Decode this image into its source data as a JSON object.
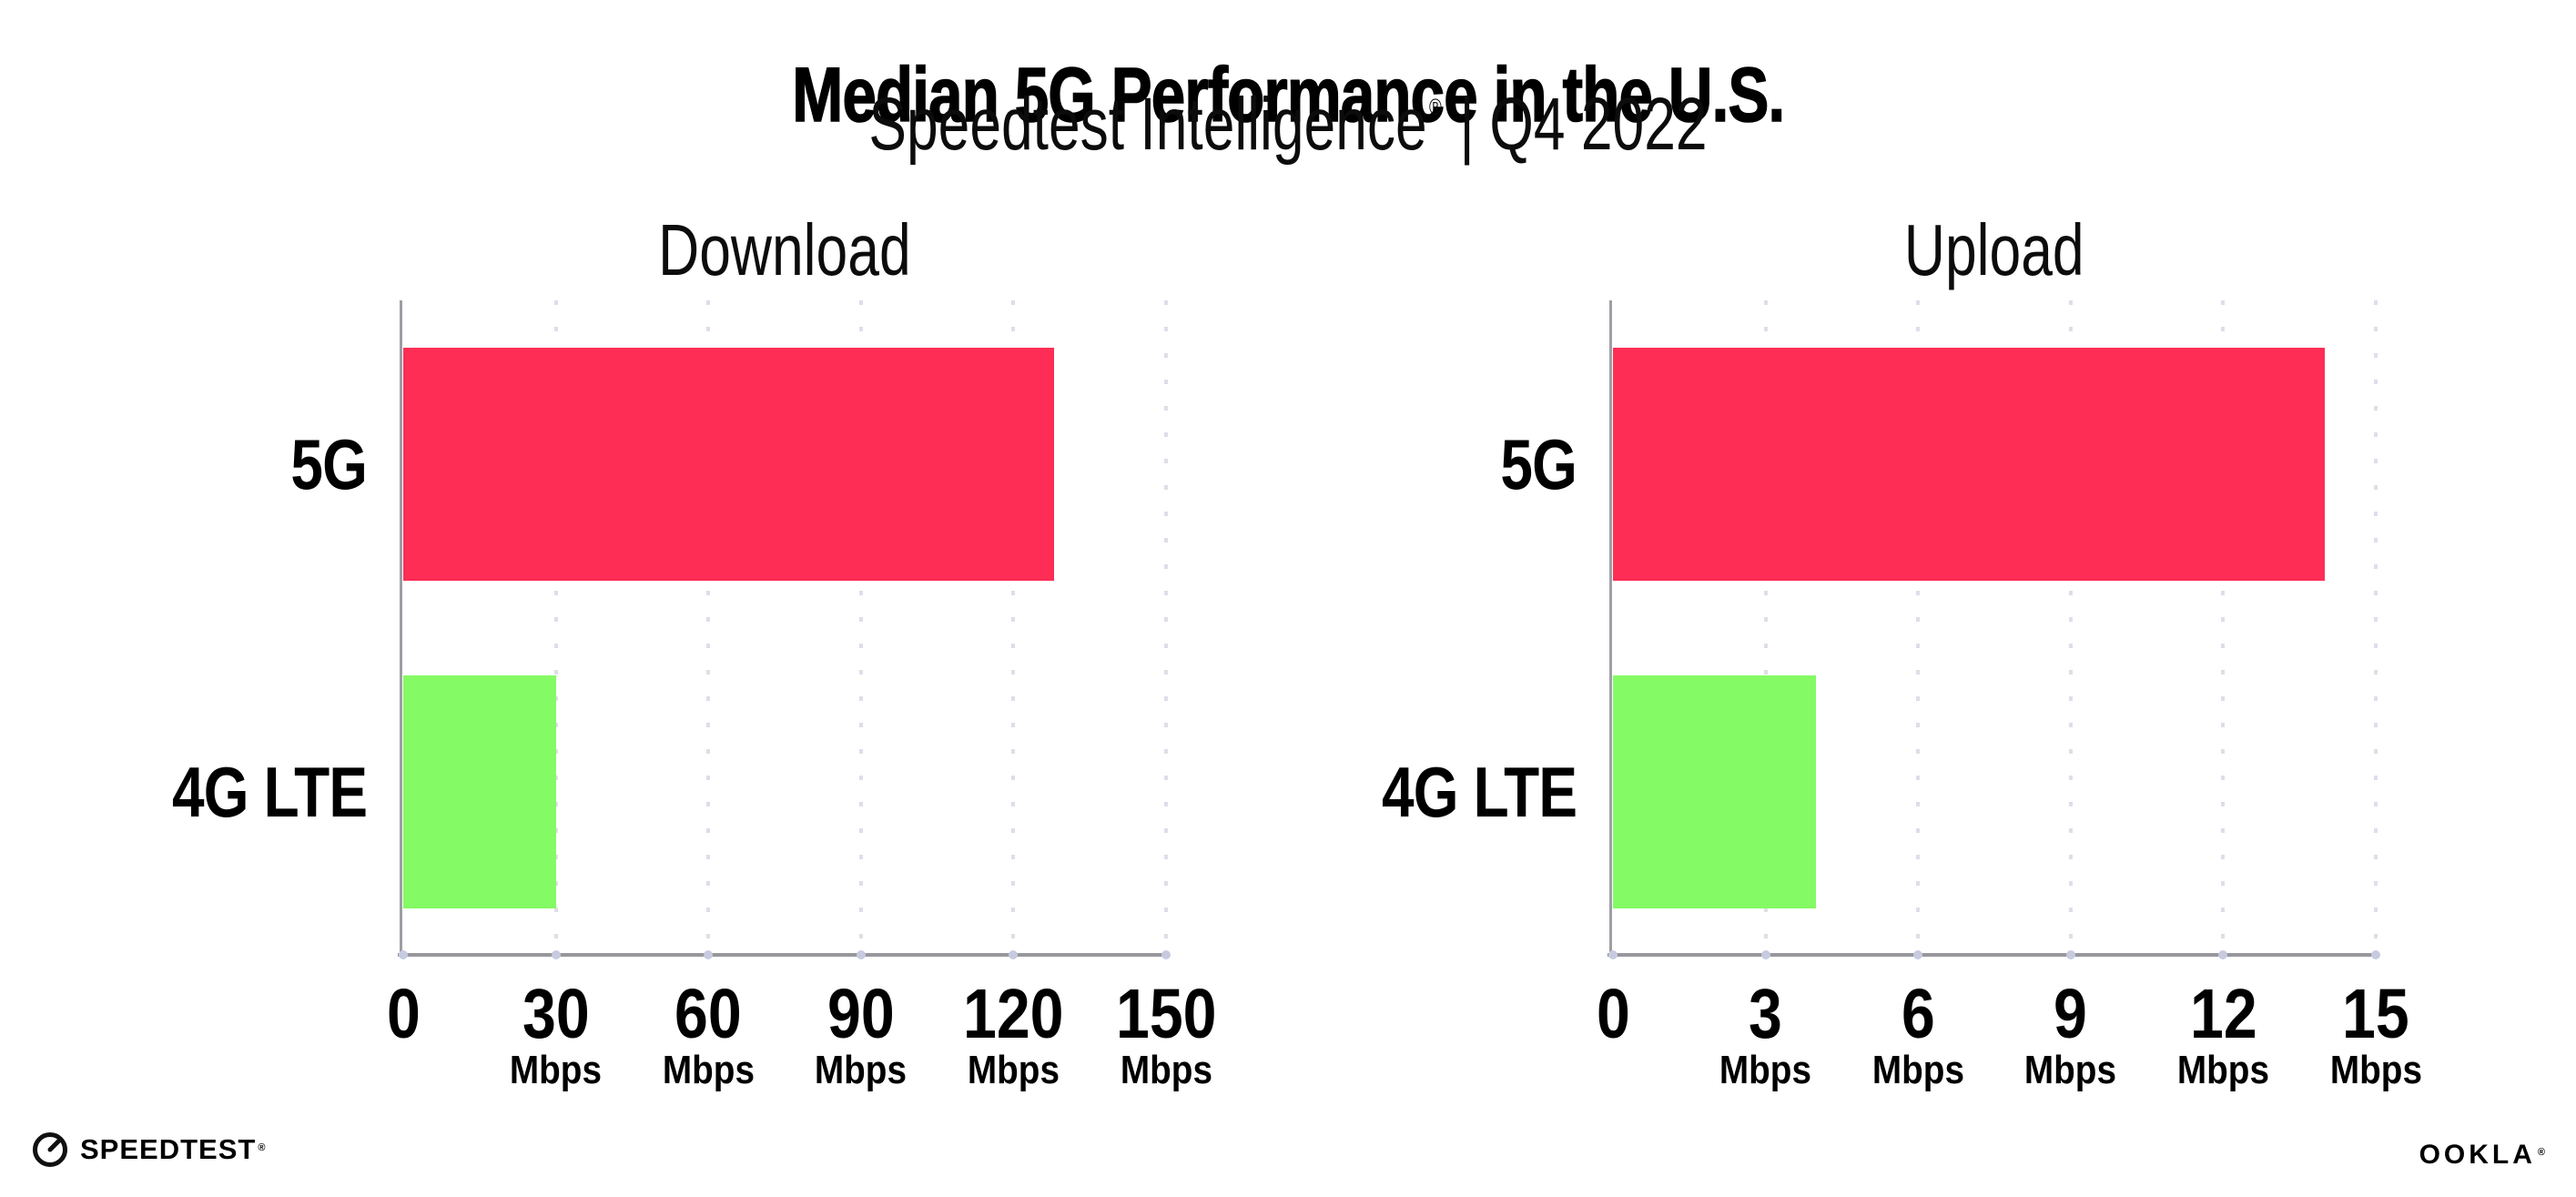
{
  "header": {
    "title": "Median 5G Performance in the U.S.",
    "subtitle_brand": "Speedtest Intelligence",
    "reg": "®",
    "subtitle_sep": "|",
    "subtitle_period": "Q4 2022"
  },
  "colors": {
    "bar_5g": "#FD2D55",
    "bar_4g_lte": "#84FA64",
    "axis_line": "#97979C",
    "grid_dots": "#DEDEE9",
    "text": "#000000"
  },
  "chart_data": [
    {
      "type": "bar",
      "orientation": "horizontal",
      "title": "Download",
      "categories": [
        "5G",
        "4G LTE"
      ],
      "values": [
        128,
        30
      ],
      "unit": "Mbps",
      "xlim": [
        0,
        150
      ],
      "xticks": [
        0,
        30,
        60,
        90,
        120,
        150
      ],
      "bar_colors": [
        "#FD2D55",
        "#84FA64"
      ],
      "grid": "dotted-vertical",
      "legend": "none",
      "unit_shown_on_zero_tick": false
    },
    {
      "type": "bar",
      "orientation": "horizontal",
      "title": "Upload",
      "categories": [
        "5G",
        "4G LTE"
      ],
      "values": [
        14,
        4
      ],
      "unit": "Mbps",
      "xlim": [
        0,
        15
      ],
      "xticks": [
        0,
        3,
        6,
        9,
        12,
        15
      ],
      "bar_colors": [
        "#FD2D55",
        "#84FA64"
      ],
      "grid": "dotted-vertical",
      "legend": "none",
      "unit_shown_on_zero_tick": false
    }
  ],
  "footer": {
    "speedtest_label": "SPEEDTEST",
    "speedtest_reg": "®",
    "ookla_label": "OOKLA",
    "ookla_reg": "®"
  }
}
